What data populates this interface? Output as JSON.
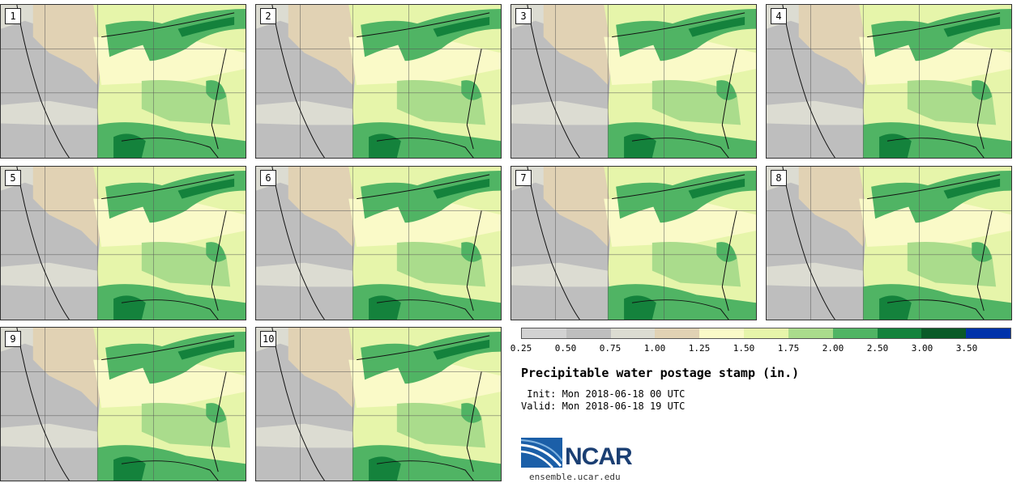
{
  "panels": [
    {
      "label": "1"
    },
    {
      "label": "2"
    },
    {
      "label": "3"
    },
    {
      "label": "4"
    },
    {
      "label": "5"
    },
    {
      "label": "6"
    },
    {
      "label": "7"
    },
    {
      "label": "8"
    },
    {
      "label": "9"
    },
    {
      "label": "10"
    }
  ],
  "colorbar": {
    "colors": [
      "#d2d2d2",
      "#bebebe",
      "#dcdcd2",
      "#e1d2b4",
      "#fafac8",
      "#e6f5aa",
      "#aadc8c",
      "#50b464",
      "#14823c",
      "#0a5a28",
      "#0032aa"
    ],
    "tick_labels": [
      "0.25",
      "0.50",
      "0.75",
      "1.00",
      "1.25",
      "1.50",
      "1.75",
      "2.00",
      "2.50",
      "3.00",
      "3.50"
    ]
  },
  "title": "Precipitable water postage stamp (in.)",
  "init_text": " Init: Mon 2018-06-18 00 UTC",
  "valid_text": "Valid: Mon 2018-06-18 19 UTC",
  "logo": {
    "name": "NCAR",
    "url": "ensemble.ucar.edu"
  }
}
